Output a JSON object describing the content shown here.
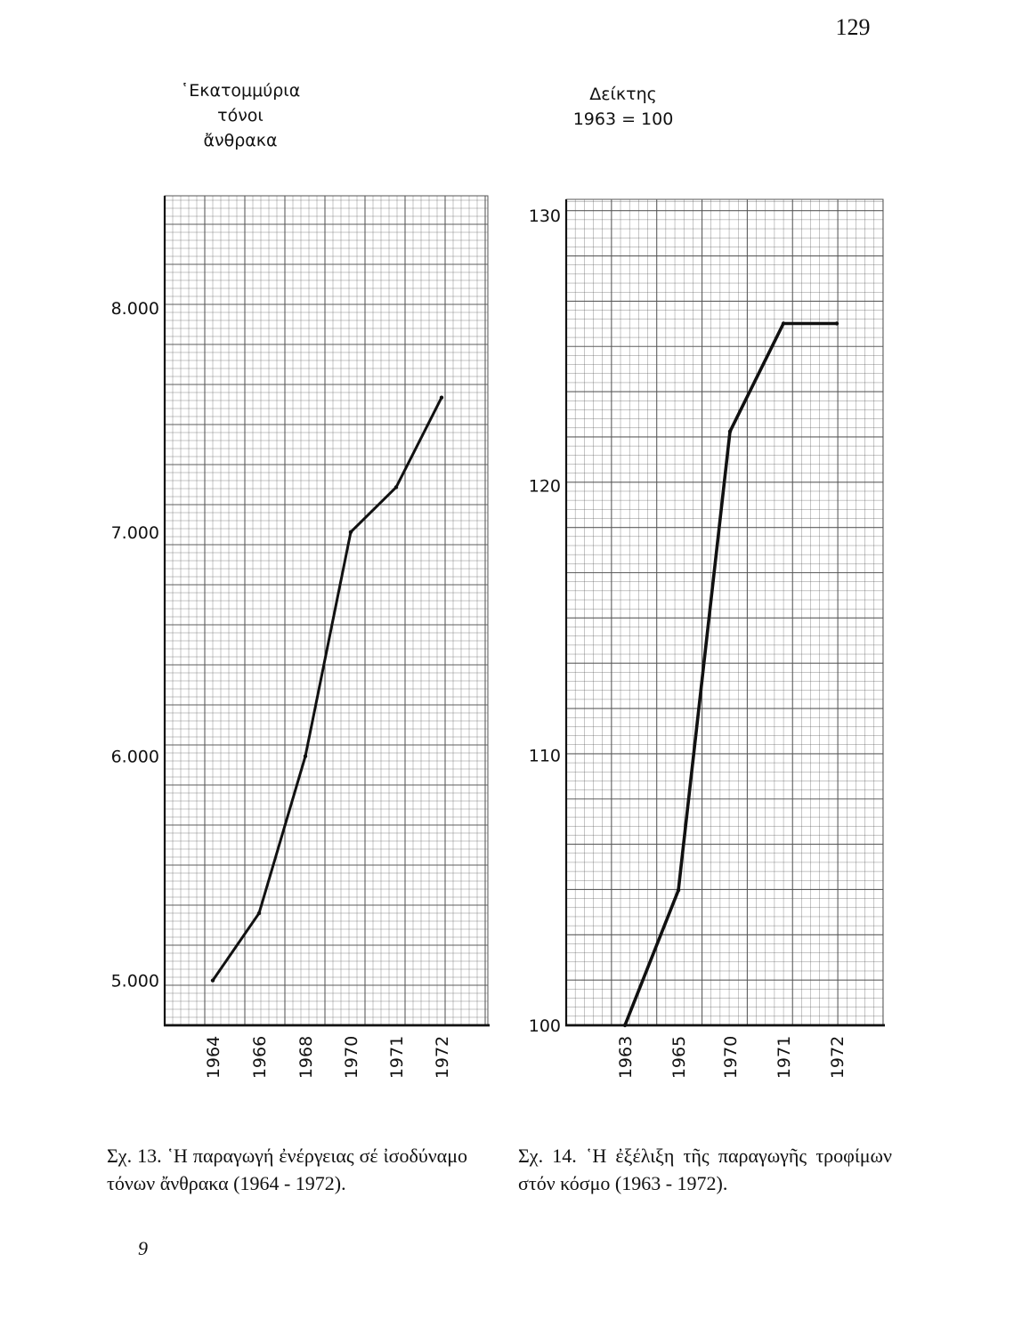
{
  "page": {
    "number": "129",
    "footer_mark": "9"
  },
  "figures": [
    {
      "ylabel_lines": [
        "῾Εκατομμύρια",
        "τόνοι",
        "ἄνθρακα"
      ],
      "caption": "Σχ. 13. ῾Η παραγωγή ἐνέργειας σέ ἰσοδύναμο τόνων ἄνθρακα (1964 - 1972)."
    },
    {
      "ylabel_lines": [
        "Δείκτης",
        "1963 = 100"
      ],
      "caption": "Σχ. 14. ῾Η ἐξέλιξη τῆς παραγωγῆς τροφίμων στόν κόσμο (1963 - 1972)."
    }
  ],
  "chart_data": [
    {
      "type": "line",
      "title": "",
      "xlabel": "",
      "ylabel": "῾Εκατομμύρια τόνοι ἄνθρακα",
      "x": [
        "1964",
        "1966",
        "1968",
        "1970",
        "1971",
        "1972"
      ],
      "y": [
        5000,
        5300,
        6000,
        7000,
        7200,
        7600
      ],
      "y_ticks": [
        5000,
        6000,
        7000,
        8000
      ],
      "y_tick_labels": [
        "5.000",
        "6.000",
        "7.000",
        "8.000"
      ],
      "ylim": [
        4800,
        8500
      ],
      "grid": true,
      "line_color": "#111111",
      "grid_color": "#555555"
    },
    {
      "type": "line",
      "title": "",
      "xlabel": "",
      "ylabel": "Δείκτης 1963 = 100",
      "x": [
        "1963",
        "1965",
        "1970",
        "1971",
        "1972"
      ],
      "y": [
        100,
        105,
        122,
        126,
        126
      ],
      "y_ticks": [
        100,
        110,
        120,
        130
      ],
      "y_tick_labels": [
        "100",
        "110",
        "120",
        "130"
      ],
      "ylim": [
        100,
        130.6
      ],
      "grid": true,
      "line_color": "#111111",
      "grid_color": "#555555"
    }
  ]
}
